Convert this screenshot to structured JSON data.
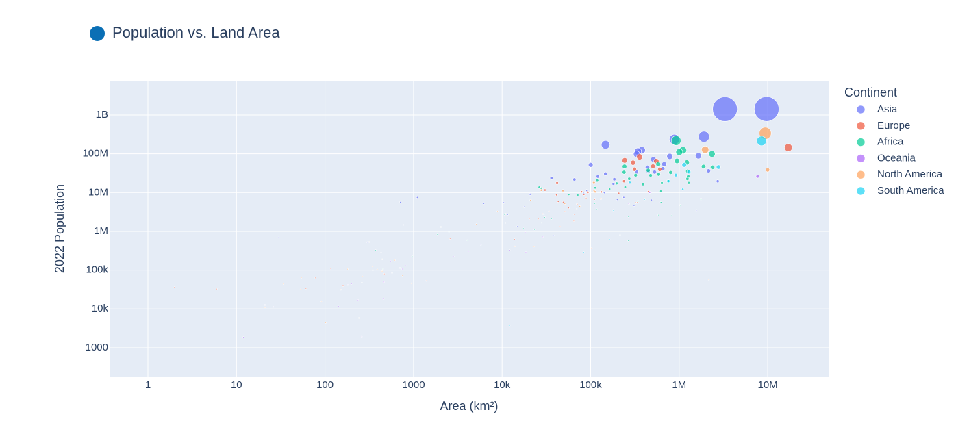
{
  "chart_data": {
    "type": "scatter",
    "title": "Population vs. Land Area",
    "x_label": "Area (km²)",
    "y_label": "2022 Population",
    "legend_title": "Continent",
    "log_x": true,
    "log_y": true,
    "grid": true,
    "xlim": [
      0.369,
      48700000
    ],
    "ylim": [
      181,
      7620000000
    ],
    "xticks": [
      1,
      10,
      100,
      1000,
      {
        "value": 10000,
        "label": "10k"
      },
      {
        "value": 100000,
        "label": "100k"
      },
      {
        "value": 1000000,
        "label": "1M"
      },
      {
        "value": 10000000,
        "label": "10M"
      }
    ],
    "yticks": [
      1000,
      {
        "value": 10000,
        "label": "10k"
      },
      {
        "value": 100000,
        "label": "100k"
      },
      {
        "value": 1000000,
        "label": "1M"
      },
      {
        "value": 10000000,
        "label": "10M"
      },
      {
        "value": 100000000,
        "label": "100M"
      },
      {
        "value": 1000000000,
        "label": "1B"
      }
    ],
    "series": [
      {
        "name": "Asia",
        "color": "#636efa",
        "x": [
          9706961,
          3287590,
          1904569,
          881912,
          147570,
          377930,
          342353,
          331212,
          1648195,
          783562,
          513120,
          676578,
          100210,
          438317,
          652230,
          2149690,
          447400,
          330803,
          527968,
          147181,
          120538,
          36193,
          185180,
          65610,
          2724900,
          181035,
          89342,
          83600,
          143100,
          20770,
          236800,
          199951,
          488100,
          710,
          10452,
          309500,
          17818,
          1564110,
          29743,
          11586,
          765,
          14874,
          38394,
          300,
          5765,
          30,
          1104,
          6220
        ],
        "y": [
          1425887337,
          1417173173,
          275501339,
          235824862,
          171186372,
          123951692,
          115559009,
          98186856,
          88550570,
          85341241,
          71697030,
          54179306,
          51815810,
          44496122,
          41128771,
          36408820,
          34627652,
          33938221,
          33696614,
          30547580,
          26069416,
          23893394,
          22125249,
          21832143,
          19621972,
          16767842,
          11285869,
          9441129,
          9952787,
          9038309,
          7529475,
          6630623,
          6430770,
          5637022,
          5489739,
          4576298,
          4268873,
          3398366,
          2780469,
          2695122,
          1472233,
          1341296,
          782455,
          523787,
          449002,
          695168,
          7488865,
          5250072
        ]
      },
      {
        "name": "Europe",
        "color": "#ef553b",
        "x": [
          17098242,
          357114,
          242900,
          551695,
          301336,
          505992,
          603500,
          312679,
          238397,
          41850,
          30528,
          450295,
          78865,
          131990,
          92090,
          93028,
          207600,
          83871,
          41284,
          88361,
          110879,
          43094,
          338424,
          323802,
          49037,
          70273,
          56594,
          33846,
          51209,
          28748,
          65300,
          25713,
          20273,
          64559,
          45227,
          2586,
          316,
          103000,
          468,
          2,
          160,
          61,
          6,
          1393,
          572,
          116,
          78,
          13812,
          10887,
          69700
        ],
        "y": [
          144713314,
          83369843,
          67508936,
          64626628,
          59037474,
          47558630,
          39701739,
          39857145,
          19659267,
          17564014,
          11655930,
          10549347,
          10493986,
          10384971,
          10270865,
          9967308,
          9534954,
          8939617,
          8740472,
          7221365,
          6781953,
          5882261,
          5540745,
          5434319,
          5643453,
          5023109,
          4030358,
          3272996,
          3233526,
          2842321,
          2750055,
          2093599,
          2119844,
          1850651,
          1326062,
          647599,
          533286,
          372899,
          79824,
          36469,
          39327,
          33660,
          32649,
          53090,
          84519,
          110778,
          63301,
          627082,
          1659714,
          3744385
        ]
      },
      {
        "name": "Africa",
        "color": "#00cc96",
        "x": [
          923768,
          1104300,
          1002450,
          2344858,
          945087,
          1221037,
          580367,
          241550,
          1886068,
          2381741,
          446550,
          1246700,
          238533,
          801590,
          587041,
          322463,
          475442,
          1267000,
          1240192,
          272967,
          118484,
          752612,
          1284000,
          637657,
          196722,
          390757,
          245857,
          26338,
          112622,
          27834,
          163610,
          619745,
          56785,
          71740,
          1759540,
          342000,
          622984,
          111369,
          1030700,
          117600,
          825615,
          10689,
          582000,
          267668,
          30355,
          36125,
          28051,
          2040,
          17364,
          23200,
          1862,
          4033,
          266000,
          964,
          452,
          2511,
          374
        ],
        "y": [
          218541212,
          123379924,
          110990103,
          99010212,
          65497748,
          59893885,
          54027487,
          47249585,
          46874204,
          44903225,
          37457971,
          35588987,
          33475870,
          32969518,
          29611714,
          28160542,
          27914536,
          26207977,
          22593590,
          22673762,
          20405317,
          20017675,
          17723315,
          17597511,
          17316449,
          16320537,
          13859341,
          13776698,
          13352864,
          12889576,
          12356117,
          10913164,
          8848699,
          8605718,
          6812341,
          5970424,
          5579144,
          5302681,
          4736139,
          3684032,
          2567012,
          2705992,
          2630296,
          2388992,
          2305825,
          2105566,
          1674908,
          1299469,
          1201670,
          1120849,
          836774,
          593149,
          575986,
          227380,
          107118,
          974052,
          326101
        ]
      },
      {
        "name": "Oceania",
        "color": "#ab63fa",
        "x": [
          7692024,
          462840,
          270467,
          18272,
          28896,
          12189,
          18575,
          4167,
          2842,
          811,
          702,
          747,
          181,
          459,
          26,
          21,
          549,
          199,
          464,
          236,
          260,
          12,
          142
        ],
        "y": [
          26177413,
          10142619,
          5185288,
          929766,
          724273,
          326740,
          289950,
          306279,
          222382,
          131232,
          114164,
          106858,
          41569,
          18055,
          11312,
          12668,
          171774,
          44273,
          49551,
          17011,
          1934,
          1871,
          11572
        ]
      },
      {
        "name": "North America",
        "color": "#ffa15a",
        "x": [
          9372610,
          1964375,
          9984670,
          108889,
          27750,
          48671,
          109884,
          112492,
          130373,
          21041,
          51100,
          75417,
          8870,
          10991,
          5130,
          13943,
          22966,
          430,
          616,
          444,
          344,
          389,
          180,
          347,
          442,
          751,
          264,
          54,
          2166086,
          261,
          948,
          34,
          151,
          91,
          102,
          242,
          21,
          53
        ],
        "y": [
          338289857,
          127504125,
          38454327,
          17843908,
          11584996,
          11228821,
          11212191,
          10432860,
          6948392,
          6336392,
          5180829,
          4408581,
          3252407,
          2827377,
          1531044,
          409984,
          405272,
          281635,
          179857,
          191163,
          125438,
          103948,
          106445,
          99465,
          93763,
          72737,
          68706,
          64184,
          56466,
          47657,
          45703,
          44175,
          31305,
          15857,
          4390,
          5862,
          10967,
          31791
        ]
      },
      {
        "name": "South America",
        "color": "#19d3f3",
        "x": [
          8515767,
          1141748,
          2780400,
          1285216,
          916445,
          756102,
          276841,
          1098581,
          406752,
          181034,
          214969,
          163820,
          83534,
          12173
        ],
        "y": [
          215313498,
          51874024,
          45510318,
          34049588,
          28301696,
          19603733,
          18001000,
          12224110,
          6780744,
          3422794,
          808726,
          618040,
          290969,
          3780
        ]
      }
    ]
  }
}
